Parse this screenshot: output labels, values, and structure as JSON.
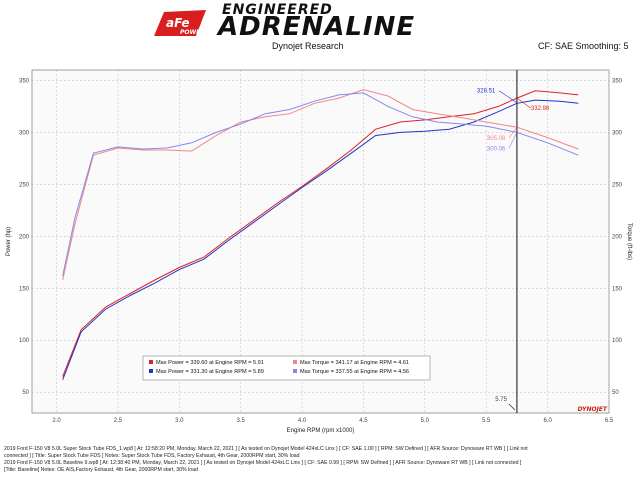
{
  "brand": {
    "logo": "aFe POWER",
    "top": "ENGINEERED",
    "main": "ADRENALINE"
  },
  "header": {
    "left": "Dynojet Research",
    "right": "CF: SAE Smoothing: 5"
  },
  "chart_data": {
    "type": "line",
    "title": "",
    "xlabel": "Engine RPM (rpm x1000)",
    "ylabel_left": "Power (hp)",
    "ylabel_right": "Torque (ft-lbs)",
    "xlim": [
      1.8,
      6.5
    ],
    "ylim": [
      30,
      360
    ],
    "x_ticks": [
      "2.0",
      "2.5",
      "3.0",
      "3.5",
      "4.0",
      "4.5",
      "5.0",
      "5.5",
      "6.0",
      "6.5"
    ],
    "y_ticks": [
      "50",
      "100",
      "150",
      "200",
      "250",
      "300",
      "350"
    ],
    "y_ticks_right": [
      "50",
      "100",
      "150",
      "200",
      "250",
      "300",
      "350"
    ],
    "marker_rpm": 5.75,
    "marker_label": "5.75",
    "callouts": [
      {
        "text": "328.51",
        "color": "#2233cc",
        "x": 5.75,
        "y": 328.51
      },
      {
        "text": "332.98",
        "color": "#dd2222",
        "x": 5.75,
        "y": 332.98
      },
      {
        "text": "305.08",
        "color": "#ee8888",
        "x": 5.75,
        "y": 305.08
      },
      {
        "text": "300.06",
        "color": "#8888ee",
        "x": 5.75,
        "y": 300.06
      }
    ],
    "series": [
      {
        "color": "#dd2222",
        "x": [
          2.05,
          2.2,
          2.4,
          2.6,
          2.8,
          3.0,
          3.2,
          3.4,
          3.6,
          3.8,
          4.0,
          4.2,
          4.4,
          4.6,
          4.8,
          5.0,
          5.2,
          5.4,
          5.6,
          5.75,
          5.9,
          6.1,
          6.25
        ],
        "y": [
          65,
          110,
          132,
          145,
          158,
          170,
          180,
          198,
          215,
          232,
          248,
          265,
          283,
          303,
          310,
          312,
          315,
          318,
          325,
          333,
          340,
          338,
          336
        ]
      },
      {
        "color": "#2233cc",
        "x": [
          2.05,
          2.2,
          2.4,
          2.6,
          2.8,
          3.0,
          3.2,
          3.4,
          3.6,
          3.8,
          4.0,
          4.2,
          4.4,
          4.6,
          4.8,
          5.0,
          5.2,
          5.4,
          5.6,
          5.75,
          5.9,
          6.1,
          6.25
        ],
        "y": [
          62,
          108,
          130,
          143,
          155,
          168,
          178,
          196,
          213,
          230,
          247,
          263,
          280,
          297,
          300,
          301,
          303,
          310,
          320,
          328,
          331,
          330,
          328
        ]
      },
      {
        "color": "#ee8888",
        "x": [
          2.05,
          2.15,
          2.3,
          2.5,
          2.7,
          2.9,
          3.1,
          3.3,
          3.5,
          3.7,
          3.9,
          4.1,
          4.3,
          4.5,
          4.7,
          4.9,
          5.1,
          5.3,
          5.5,
          5.75,
          6.0,
          6.25
        ],
        "y": [
          158,
          212,
          278,
          285,
          283,
          283,
          282,
          297,
          310,
          315,
          318,
          328,
          333,
          341,
          335,
          322,
          318,
          314,
          310,
          305,
          295,
          284
        ]
      },
      {
        "color": "#8888ee",
        "x": [
          2.05,
          2.15,
          2.3,
          2.5,
          2.7,
          2.9,
          3.1,
          3.3,
          3.5,
          3.7,
          3.9,
          4.1,
          4.3,
          4.5,
          4.7,
          4.9,
          5.1,
          5.3,
          5.5,
          5.75,
          6.0,
          6.25
        ],
        "y": [
          162,
          218,
          280,
          286,
          284,
          285,
          290,
          300,
          308,
          318,
          322,
          330,
          336,
          338,
          325,
          315,
          310,
          308,
          306,
          300,
          290,
          278
        ]
      }
    ],
    "legend": [
      {
        "color": "#dd2222",
        "text": "Max Power = 339.60 at Engine RPM = 5.91"
      },
      {
        "color": "#ee8888",
        "text": "Max Torque = 341.17 at Engine RPM = 4.61"
      },
      {
        "color": "#2233cc",
        "text": "Max Power = 331.30 at Engine RPM = 5.89"
      },
      {
        "color": "#8888ee",
        "text": "Max Torque = 337.55 at Engine RPM = 4.56"
      }
    ],
    "watermark": "DYNOJET"
  },
  "footnotes": [
    "2019 Ford F-150 V8 5.0L Super Stock Tube FDS_1.wp8 [ At: 12:58:20 PM, Monday, March 22, 2021 ] [ As tested on Dynojet Model 424xLC Linx ] [ CF: SAE 1.00 ] [ RPM: SW Defined ] [ AFR Source: Dynoware RT WB ] [ Link not",
    "connected ] [ Title: Super Stock Tube FDS ] Notes: Super Stock Tube FDS, Factory Exhaust, 4th Gear, 2000RPM start, 30% load",
    "2019 Ford F-150 V8 5.0L Baseline 9.wp8 [ At: 12:38:40 PM, Monday, March 22, 2021 ] [ As tested on Dynojet Model 424xLC Linx ] [ CF: SAE 0.99 ] [ RPM: SW Defined ] [ AFR Source: Dynoware RT WB ] [ Link not connected ]",
    "[Title: Baseline] Notes: OE AIS,Factory Exhaust, 4th Gear, 2000RPM start, 30% load"
  ]
}
